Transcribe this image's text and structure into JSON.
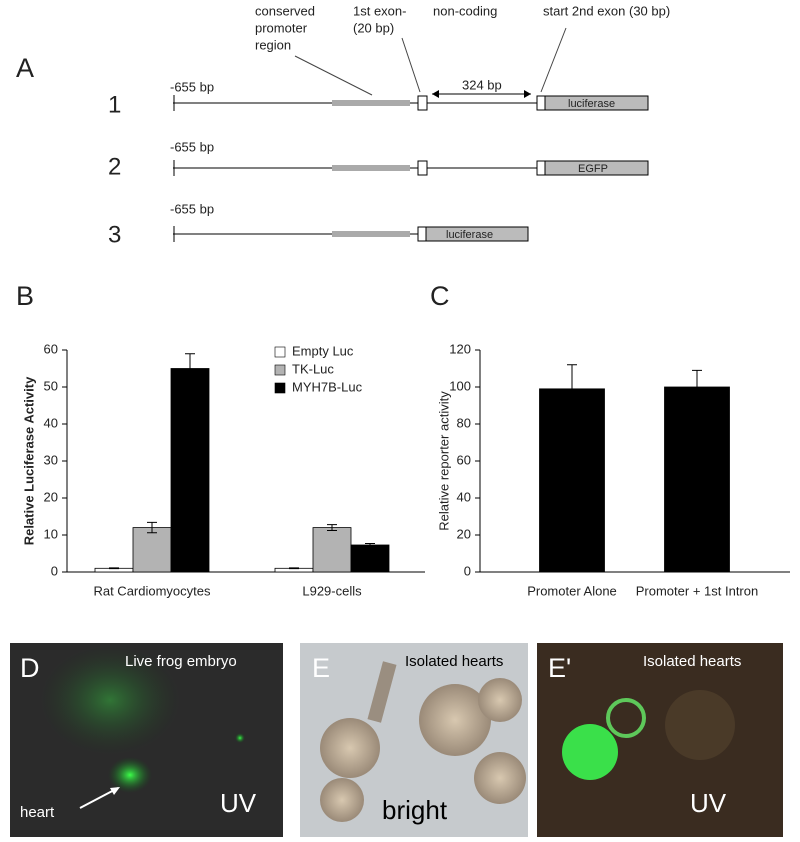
{
  "diagram": {
    "label": "A",
    "annotations": {
      "promoter": [
        "conserved",
        "promoter",
        "region"
      ],
      "exon1": [
        "1st exon-",
        "(20 bp)"
      ],
      "noncoding": "non-coding",
      "exon2": "start 2nd exon (30 bp)",
      "spacing": "324 bp"
    },
    "constructs": [
      {
        "number": "1",
        "start": "-655 bp",
        "reporter": "luciferase"
      },
      {
        "number": "2",
        "start": "-655 bp",
        "reporter": "EGFP"
      },
      {
        "number": "3",
        "start": "-655 bp",
        "reporter": "luciferase"
      }
    ]
  },
  "chart_data": [
    {
      "type": "bar",
      "panel": "B",
      "ylabel": "Relative Luciferase Activity",
      "categories": [
        "Rat Cardiomyocytes",
        "L929-cells"
      ],
      "series": [
        {
          "name": "Empty Luc",
          "color": "#ffffff",
          "values": [
            1,
            1
          ],
          "errors": [
            0.1,
            0.1
          ]
        },
        {
          "name": "TK-Luc",
          "color": "#b3b3b3",
          "values": [
            12,
            12
          ],
          "errors": [
            1.4,
            0.8
          ]
        },
        {
          "name": "MYH7B-Luc",
          "color": "#000000",
          "values": [
            55,
            7.3
          ],
          "errors": [
            4,
            0.4
          ]
        }
      ],
      "ylim": [
        0,
        60
      ],
      "yticks": [
        0,
        10,
        20,
        30,
        40,
        50,
        60
      ],
      "legend": "upper right"
    },
    {
      "type": "bar",
      "panel": "C",
      "ylabel": "Relative reporter activity",
      "categories": [
        "Promoter Alone",
        "Promoter + 1st Intron"
      ],
      "values": [
        99,
        100
      ],
      "errors": [
        13,
        9
      ],
      "color": "#000000",
      "ylim": [
        0,
        120
      ],
      "yticks": [
        0,
        20,
        40,
        60,
        80,
        100,
        120
      ]
    }
  ],
  "photos": [
    {
      "label": "D",
      "caption": "Live frog embryo",
      "annotation": "heart",
      "mode": "UV"
    },
    {
      "label": "E",
      "caption": "Isolated hearts",
      "mode": "bright"
    },
    {
      "label": "E'",
      "caption": "Isolated hearts",
      "mode": "UV"
    }
  ]
}
